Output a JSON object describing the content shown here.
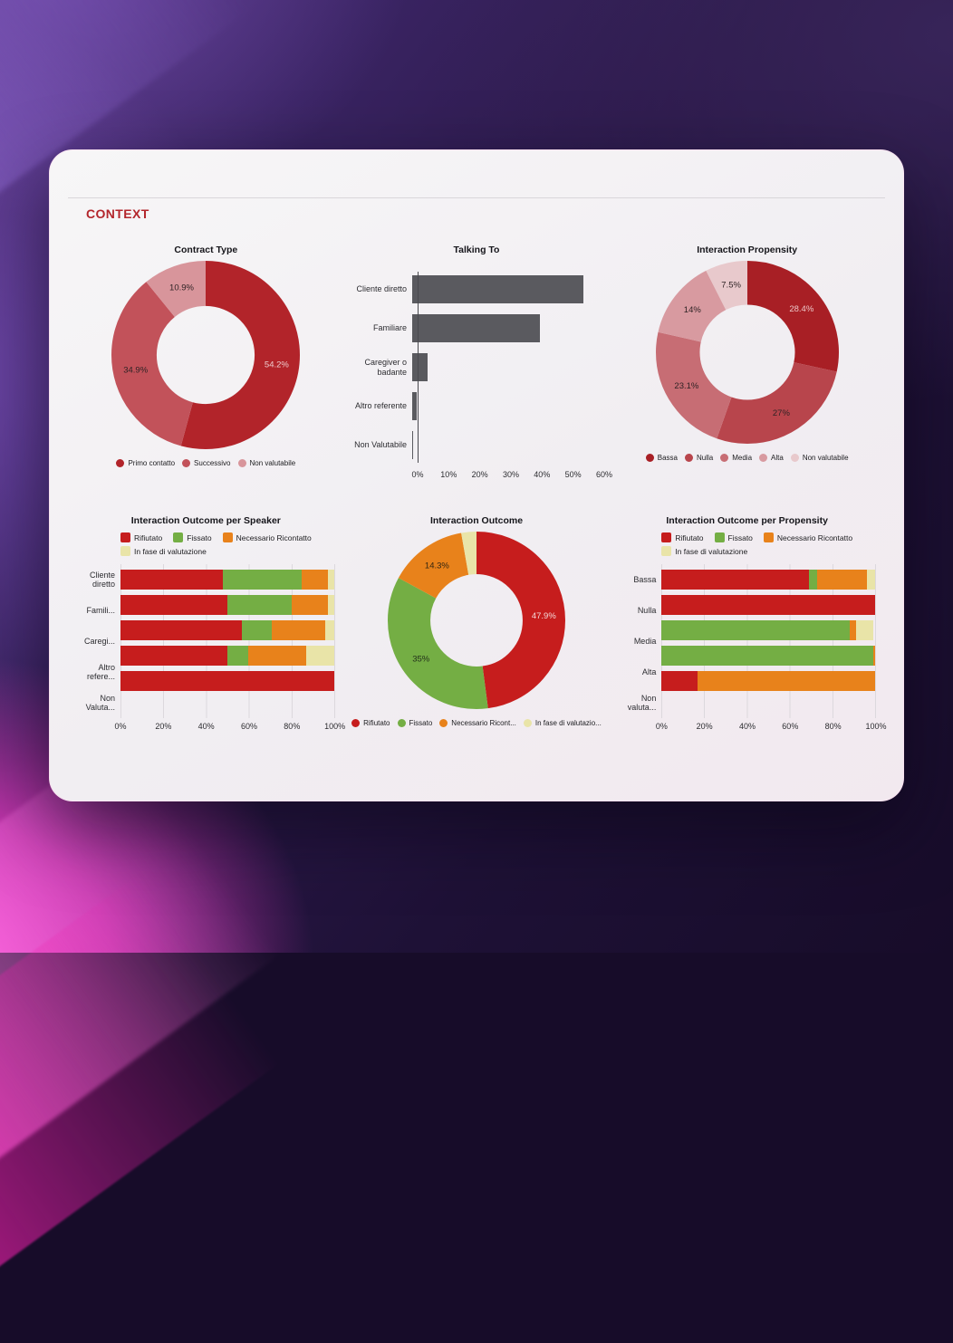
{
  "header": {
    "title": "CONTEXT"
  },
  "chart_data": [
    {
      "type": "pie",
      "title": "Contract Type",
      "size": 212,
      "hole": 0.52,
      "legend_position": "bottom",
      "slices": [
        {
          "label": "Primo contatto",
          "value": 54.2,
          "display": "54.2%",
          "color": "#b2242a",
          "text_color": "#eecdce"
        },
        {
          "label": "Successivo",
          "value": 34.9,
          "display": "34.9%",
          "color": "#c2525a",
          "text_color": "#2f2325"
        },
        {
          "label": "Non valutabile",
          "value": 10.9,
          "display": "10.9%",
          "color": "#d8959b",
          "text_color": "#2f2325"
        }
      ]
    },
    {
      "type": "bar",
      "orientation": "h",
      "title": "Talking To",
      "bar_color": "#5a5a5f",
      "xmax": 60,
      "ticks": [
        "0%",
        "10%",
        "20%",
        "30%",
        "40%",
        "50%",
        "60%"
      ],
      "categories": [
        "Cliente diretto",
        "Familiare",
        "Caregiver o\nbadante",
        "Altro referente",
        "Non Valutabile"
      ],
      "values": [
        53.5,
        39.8,
        4.8,
        1.5,
        0.2
      ]
    },
    {
      "type": "pie",
      "title": "Interaction Propensity",
      "size": 206,
      "hole": 0.52,
      "legend_position": "bottom",
      "slices": [
        {
          "label": "Bassa",
          "value": 28.4,
          "display": "28.4%",
          "color": "#a81f25",
          "text_color": "#ecc6c7"
        },
        {
          "label": "Nulla",
          "value": 27,
          "display": "27%",
          "color": "#b8454c",
          "text_color": "#2f2325"
        },
        {
          "label": "Media",
          "value": 23.1,
          "display": "23.1%",
          "color": "#c76d74",
          "text_color": "#2f2325"
        },
        {
          "label": "Alta",
          "value": 14,
          "display": "14%",
          "color": "#d89aa0",
          "text_color": "#2f2325"
        },
        {
          "label": "Non valutabile",
          "value": 7.5,
          "display": "7.5%",
          "color": "#e8c9cc",
          "text_color": "#2f2325"
        }
      ]
    },
    {
      "type": "bar",
      "orientation": "h",
      "stacked": true,
      "title": "Interaction Outcome per Speaker",
      "series": [
        "Rifiutato",
        "Fissato",
        "Necessario Ricontatto",
        "In fase di valutazione"
      ],
      "colors": [
        "#c61d1d",
        "#74ae44",
        "#e8821b",
        "#e9e4a8"
      ],
      "ticks": [
        "0%",
        "20%",
        "40%",
        "60%",
        "80%",
        "100%"
      ],
      "categories": [
        "Cliente\ndiretto",
        "Famili...",
        "Caregi...",
        "Altro\nrefere...",
        "Non\nValuta..."
      ],
      "rows": [
        [
          48,
          37,
          12,
          3
        ],
        [
          50,
          30,
          17,
          3
        ],
        [
          57,
          14,
          25,
          4
        ],
        [
          50,
          10,
          27,
          13
        ],
        [
          100,
          0,
          0,
          0
        ]
      ]
    },
    {
      "type": "pie",
      "title": "Interaction Outcome",
      "size": 200,
      "hole": 0.52,
      "legend_position": "bottom",
      "slices": [
        {
          "label": "Rifiutato",
          "value": 47.9,
          "display": "47.9%",
          "color": "#c61d1d",
          "text_color": "#f4d9d9"
        },
        {
          "label": "Fissato",
          "value": 35,
          "display": "35%",
          "color": "#74ae44",
          "text_color": "#23311b"
        },
        {
          "label": "Necessario Ricont...",
          "value": 14.3,
          "display": "14.3%",
          "color": "#e8821b",
          "text_color": "#342510"
        },
        {
          "label": "In fase di valutazio...",
          "value": 2.8,
          "display": "",
          "color": "#e9e4a8",
          "text_color": "#333333"
        }
      ]
    },
    {
      "type": "bar",
      "orientation": "h",
      "stacked": true,
      "title": "Interaction Outcome per Propensity",
      "series": [
        "Rifiutato",
        "Fissato",
        "Necessario Ricontatto",
        "In fase di valutazione"
      ],
      "colors": [
        "#c61d1d",
        "#74ae44",
        "#e8821b",
        "#e9e4a8"
      ],
      "ticks": [
        "0%",
        "20%",
        "40%",
        "60%",
        "80%",
        "100%"
      ],
      "categories": [
        "Bassa",
        "Nulla",
        "Media",
        "Alta",
        "Non\nvaluta..."
      ],
      "rows": [
        [
          69,
          4,
          23,
          4
        ],
        [
          100,
          0,
          0,
          0
        ],
        [
          0,
          88,
          3,
          8
        ],
        [
          0,
          99,
          1,
          0
        ],
        [
          17,
          0,
          83,
          0
        ]
      ]
    }
  ]
}
